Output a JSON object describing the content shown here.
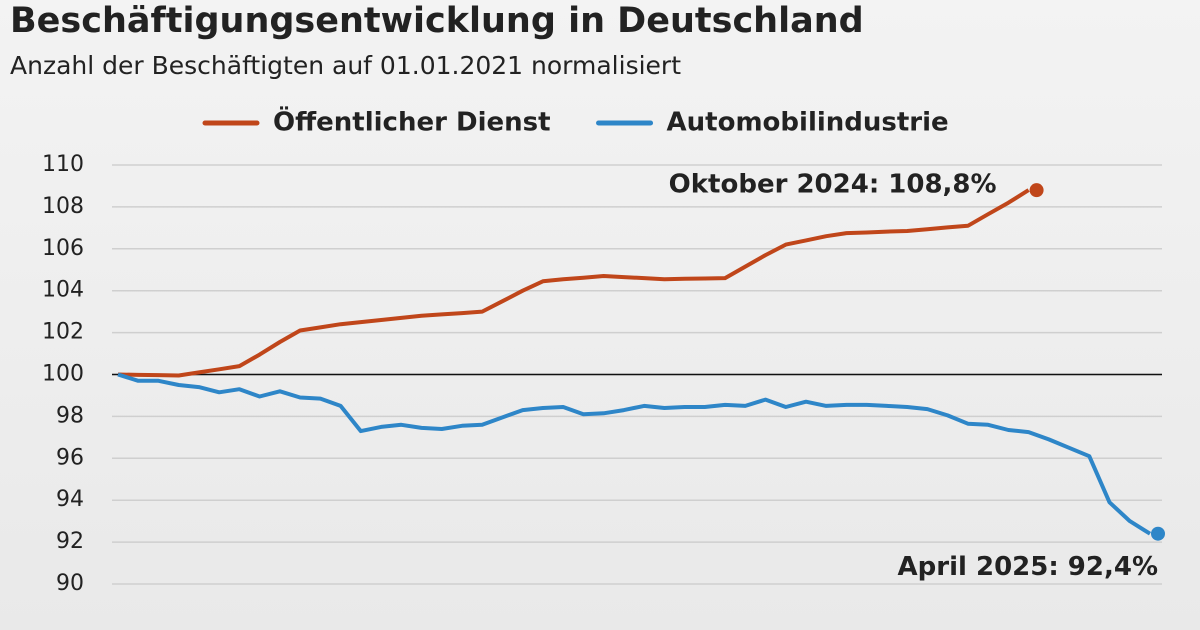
{
  "chart_data": {
    "type": "line",
    "title": "Beschäftigungsentwicklung in Deutschland",
    "subtitle": "Anzahl der Beschäftigten auf 01.01.2021 normalisiert",
    "series": [
      {
        "name": "Öffentlicher Dienst",
        "color": "#c0461a",
        "values": [
          100.0,
          99.98,
          99.97,
          99.95,
          100.1,
          100.25,
          100.4,
          100.95,
          101.55,
          102.1,
          102.25,
          102.4,
          102.5,
          102.6,
          102.7,
          102.8,
          102.87,
          102.93,
          103.0,
          103.5,
          104.0,
          104.45,
          104.55,
          104.62,
          104.7,
          104.65,
          104.6,
          104.55,
          104.57,
          104.58,
          104.6,
          105.15,
          105.7,
          106.2,
          106.4,
          106.6,
          106.75,
          106.78,
          106.82,
          106.85,
          106.93,
          107.02,
          107.1,
          107.65,
          108.2,
          108.8,
          null,
          null,
          null,
          null,
          null,
          null
        ],
        "annotation": "Oktober 2024: 108,8%"
      },
      {
        "name": "Automobilindustrie",
        "color": "#2e86c8",
        "values": [
          100.0,
          99.7,
          99.7,
          99.5,
          99.4,
          99.15,
          99.3,
          98.95,
          99.2,
          98.9,
          98.85,
          98.5,
          97.3,
          97.5,
          97.6,
          97.45,
          97.4,
          97.55,
          97.6,
          97.95,
          98.3,
          98.4,
          98.45,
          98.1,
          98.15,
          98.3,
          98.5,
          98.4,
          98.45,
          98.45,
          98.55,
          98.5,
          98.8,
          98.45,
          98.7,
          98.5,
          98.55,
          98.55,
          98.5,
          98.45,
          98.35,
          98.05,
          97.65,
          97.6,
          97.35,
          97.25,
          96.9,
          96.5,
          96.1,
          93.9,
          93.0,
          92.4
        ],
        "annotation": "April 2025: 92,4%"
      }
    ],
    "ylim": [
      90,
      110
    ],
    "yticks": [
      90,
      92,
      94,
      96,
      98,
      100,
      102,
      104,
      106,
      108,
      110
    ],
    "grid": true,
    "reference_line": 100,
    "legend": "top"
  }
}
